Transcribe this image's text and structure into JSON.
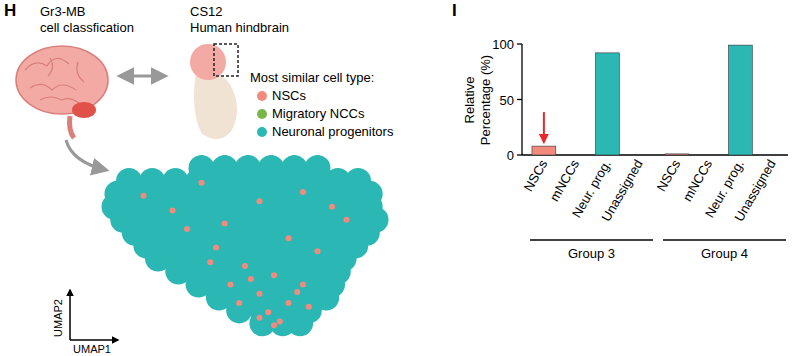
{
  "chart_data": [
    {
      "type": "scatter",
      "panel": "H",
      "title": [
        "Gr3-MB",
        "cell classfication"
      ],
      "reference": [
        "CS12",
        "Human hindbrain"
      ],
      "legend_title": "Most similar cell type:",
      "x_label": "UMAP1",
      "y_label": "UMAP2",
      "xlim": [
        0,
        10
      ],
      "ylim": [
        0,
        10
      ],
      "tick_labels": false,
      "grid": false,
      "series": [
        {
          "name": "NSCs",
          "color": "#f28b7d",
          "marker": "circle",
          "x": [
            3.0,
            5.5,
            7.0,
            4.0,
            6.5,
            2.5,
            8.5,
            5.0,
            6.0,
            4.5,
            5.5,
            6.5,
            5.8,
            6.2,
            7.0,
            4.8,
            3.8,
            7.5,
            6.8,
            5.2,
            6.0,
            5.5,
            7.2,
            4.3,
            8.0,
            1.5,
            3.5
          ],
          "values": [
            6.0,
            7.5,
            8.0,
            5.0,
            5.5,
            7.0,
            6.5,
            4.0,
            3.5,
            3.0,
            2.5,
            2.0,
            1.5,
            1.0,
            3.0,
            2.0,
            4.2,
            4.8,
            2.6,
            3.3,
            0.8,
            1.2,
            1.8,
            6.3,
            7.2,
            7.8,
            8.5
          ]
        },
        {
          "name": "Migratory NCCs",
          "color": "#7ab648",
          "marker": "circle",
          "x": [],
          "values": []
        },
        {
          "name": "Neuronal progenitors",
          "color": "#2bb8b4",
          "marker": "circle",
          "x": [
            3.5,
            4.3,
            5.1,
            5.9,
            6.7,
            7.5,
            1.0,
            1.8,
            2.6,
            3.4,
            4.2,
            5.0,
            5.8,
            6.6,
            7.4,
            8.2,
            8.9,
            0.6,
            1.4,
            2.2,
            3.0,
            3.8,
            4.6,
            5.4,
            6.2,
            7.0,
            7.8,
            8.6,
            9.3,
            0.5,
            1.3,
            2.1,
            2.9,
            3.7,
            4.5,
            5.3,
            6.1,
            6.9,
            7.7,
            8.5,
            9.3,
            0.8,
            1.6,
            2.4,
            3.2,
            4.0,
            4.8,
            5.6,
            6.4,
            7.2,
            8.0,
            8.8,
            9.5,
            1.2,
            2.0,
            2.8,
            3.6,
            4.4,
            5.2,
            6.0,
            6.8,
            7.6,
            8.4,
            9.2,
            1.6,
            2.4,
            3.2,
            4.0,
            4.8,
            5.6,
            6.4,
            7.2,
            8.0,
            8.8,
            2.0,
            2.8,
            3.6,
            4.4,
            5.2,
            6.0,
            6.8,
            7.6,
            8.4,
            2.7,
            3.5,
            4.3,
            5.1,
            5.9,
            6.7,
            7.5,
            8.2,
            3.4,
            4.2,
            5.0,
            5.8,
            6.6,
            7.4,
            8.0,
            4.1,
            4.9,
            5.7,
            6.5,
            7.3,
            7.8,
            4.8,
            5.6,
            6.4,
            7.2,
            5.6,
            6.3,
            6.9
          ],
          "values": [
            9.3,
            9.3,
            9.3,
            9.3,
            9.3,
            9.3,
            8.6,
            8.6,
            8.6,
            8.6,
            8.6,
            8.6,
            8.6,
            8.6,
            8.6,
            8.6,
            8.6,
            7.9,
            7.9,
            7.9,
            7.9,
            7.9,
            7.9,
            7.9,
            7.9,
            7.9,
            7.9,
            7.9,
            7.9,
            7.2,
            7.2,
            7.2,
            7.2,
            7.2,
            7.2,
            7.2,
            7.2,
            7.2,
            7.2,
            7.2,
            7.2,
            6.5,
            6.5,
            6.5,
            6.5,
            6.5,
            6.5,
            6.5,
            6.5,
            6.5,
            6.5,
            6.5,
            6.5,
            5.8,
            5.8,
            5.8,
            5.8,
            5.8,
            5.8,
            5.8,
            5.8,
            5.8,
            5.8,
            5.8,
            5.1,
            5.1,
            5.1,
            5.1,
            5.1,
            5.1,
            5.1,
            5.1,
            5.1,
            5.1,
            4.4,
            4.4,
            4.4,
            4.4,
            4.4,
            4.4,
            4.4,
            4.4,
            4.4,
            3.7,
            3.7,
            3.7,
            3.7,
            3.7,
            3.7,
            3.7,
            3.7,
            3.0,
            3.0,
            3.0,
            3.0,
            3.0,
            3.0,
            3.0,
            2.3,
            2.3,
            2.3,
            2.3,
            2.3,
            2.3,
            1.6,
            1.6,
            1.6,
            1.6,
            0.9,
            0.9,
            0.9
          ]
        }
      ]
    },
    {
      "type": "bar",
      "panel": "I",
      "y_label": [
        "Relative",
        "Percentage (%)"
      ],
      "categories": [
        "NSCs",
        "mNCCs",
        "Neur. prog.",
        "Unassigned",
        "NSCs",
        "mNCCs",
        "Neur. prog.",
        "Unassigned"
      ],
      "groups": [
        "Group 3",
        "Group 4"
      ],
      "values": [
        8,
        0,
        92,
        0,
        1,
        0,
        99,
        0
      ],
      "colors": [
        "#f28b7d",
        "#7ab648",
        "#2bb8b4",
        "#999999",
        "#f28b7d",
        "#7ab648",
        "#2bb8b4",
        "#999999"
      ],
      "ylim": [
        0,
        100
      ],
      "yticks": [
        0,
        50,
        100
      ],
      "grid": false
    }
  ]
}
